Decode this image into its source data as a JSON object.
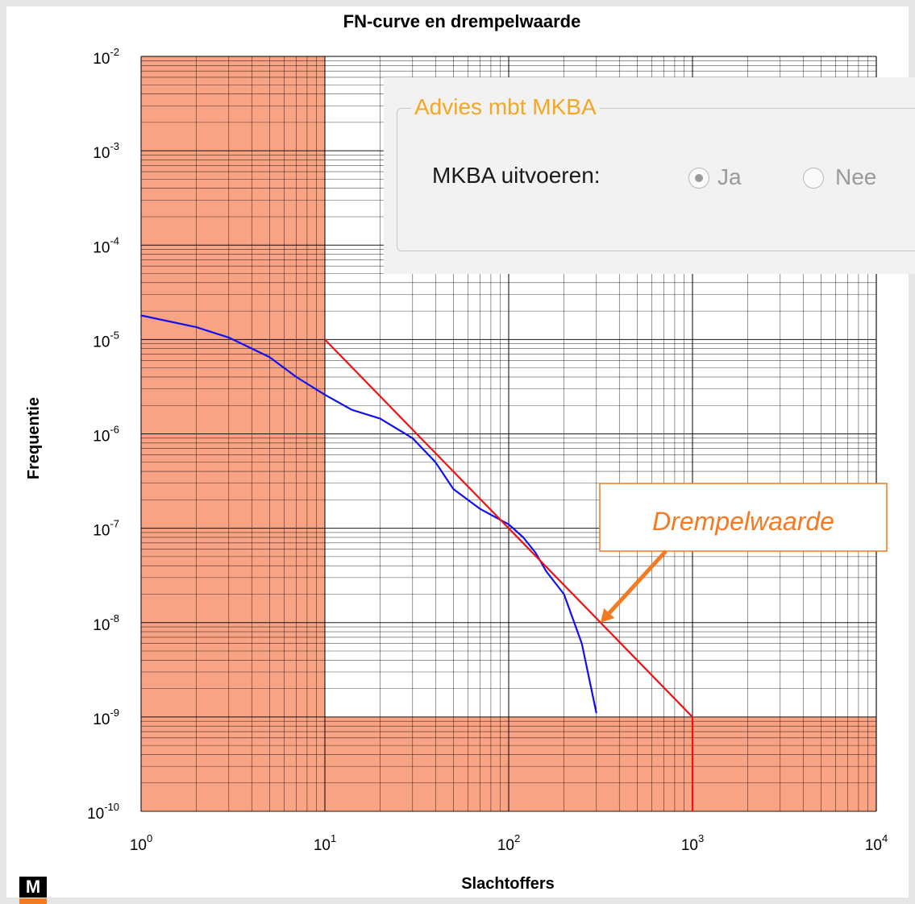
{
  "chart_data": {
    "type": "line",
    "title": "FN-curve en drempelwaarde",
    "xlabel": "Slachtoffers",
    "ylabel": "Frequentie",
    "x_scale": "log",
    "y_scale": "log",
    "xlim": [
      1,
      10000
    ],
    "ylim": [
      1e-10,
      0.01
    ],
    "grid": true,
    "x_ticks": [
      {
        "base": "10",
        "exp": "0"
      },
      {
        "base": "10",
        "exp": "1"
      },
      {
        "base": "10",
        "exp": "2"
      },
      {
        "base": "10",
        "exp": "3"
      },
      {
        "base": "10",
        "exp": "4"
      }
    ],
    "y_ticks": [
      {
        "base": "10",
        "exp": "-2"
      },
      {
        "base": "10",
        "exp": "-3"
      },
      {
        "base": "10",
        "exp": "-4"
      },
      {
        "base": "10",
        "exp": "-5"
      },
      {
        "base": "10",
        "exp": "-6"
      },
      {
        "base": "10",
        "exp": "-7"
      },
      {
        "base": "10",
        "exp": "-8"
      },
      {
        "base": "10",
        "exp": "-9"
      },
      {
        "base": "10",
        "exp": "-10"
      }
    ],
    "shaded_regions": [
      {
        "x": [
          1,
          10
        ],
        "y": [
          1e-10,
          0.01
        ],
        "color": "#f9a385"
      },
      {
        "x": [
          10,
          10000
        ],
        "y": [
          1e-10,
          1e-09
        ],
        "color": "#f9a385"
      }
    ],
    "series": [
      {
        "color": "#1010ee",
        "points": [
          [
            1,
            1.8e-05
          ],
          [
            2,
            1.35e-05
          ],
          [
            3,
            1.05e-05
          ],
          [
            5,
            6.5e-06
          ],
          [
            7,
            4e-06
          ],
          [
            10,
            2.6e-06
          ],
          [
            14,
            1.8e-06
          ],
          [
            20,
            1.45e-06
          ],
          [
            30,
            9e-07
          ],
          [
            40,
            5e-07
          ],
          [
            50,
            2.6e-07
          ],
          [
            70,
            1.6e-07
          ],
          [
            100,
            1.1e-07
          ],
          [
            120,
            8e-08
          ],
          [
            140,
            5.5e-08
          ],
          [
            160,
            3.5e-08
          ],
          [
            200,
            2e-08
          ],
          [
            250,
            6e-09
          ],
          [
            300,
            1.1e-09
          ]
        ]
      },
      {
        "color": "#ee1111",
        "points": [
          [
            10,
            1e-05
          ],
          [
            1000,
            1e-09
          ],
          [
            1000,
            1e-10
          ]
        ]
      }
    ],
    "annotation": {
      "text": "Drempelwaarde",
      "color": "#f47920",
      "target": [
        316,
        1e-08
      ]
    }
  },
  "advice_panel": {
    "legend": "Advies mbt MKBA",
    "label": "MKBA uitvoeren:",
    "options": [
      {
        "label": "Ja",
        "selected": true
      },
      {
        "label": "Nee",
        "selected": false
      }
    ],
    "legend_color": "#f5a623"
  },
  "logo": {
    "text": "M",
    "accent": "#f47920"
  }
}
